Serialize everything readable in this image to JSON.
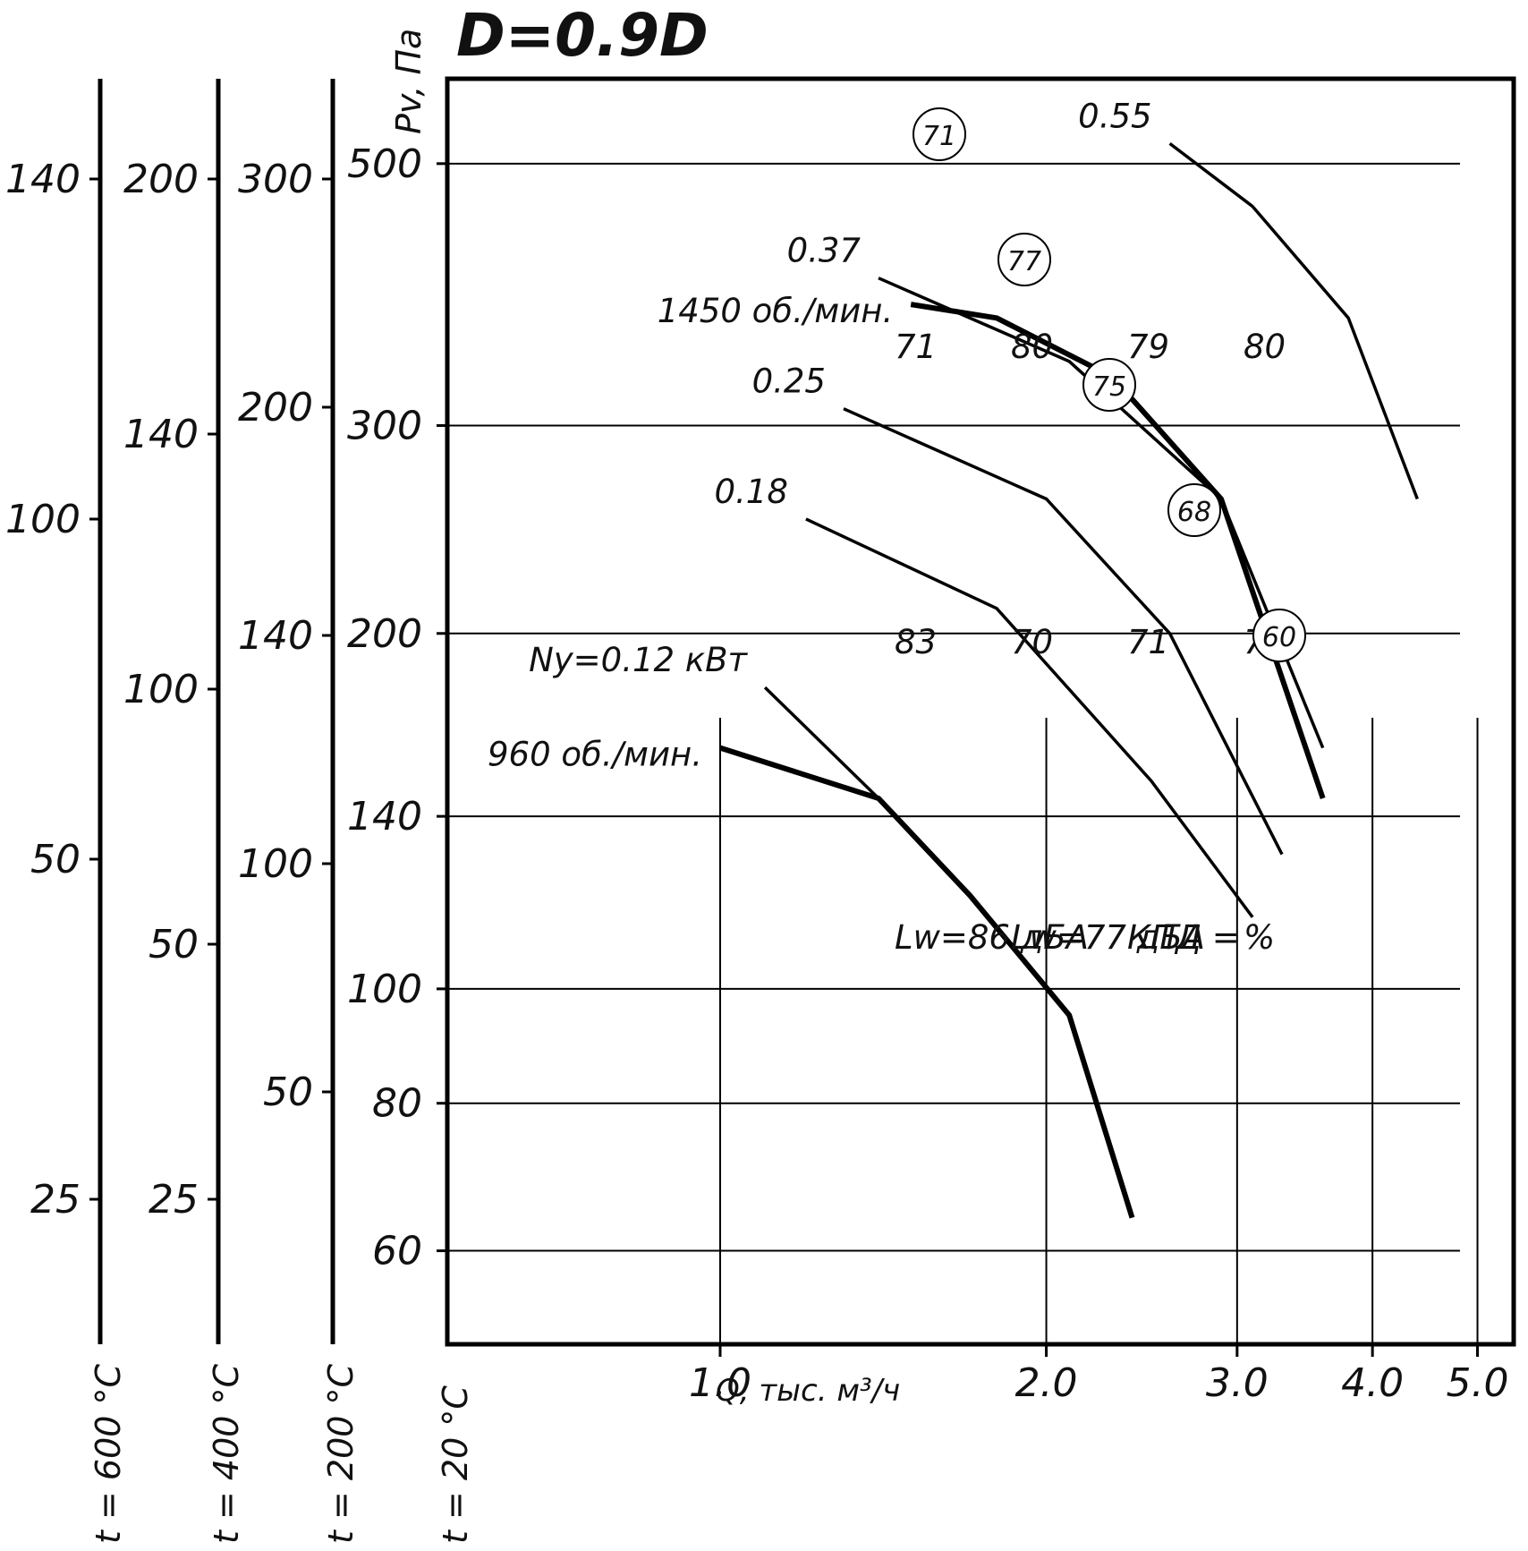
{
  "chart_data": {
    "type": "line",
    "title": "D=0.9D",
    "xlabel": "Q, тыс. м³/ч",
    "ylabel": "Pv, Па",
    "x_scale": "log",
    "y_scale": "log",
    "xlim": [
      0.56,
      5.4
    ],
    "ylim": [
      50,
      590
    ],
    "x_ticks": [
      "1.0",
      "2.0",
      "3.0",
      "4.0",
      "5.0"
    ],
    "y_ticks": [
      "500",
      "300",
      "200",
      "140",
      "100",
      "80",
      "60"
    ],
    "temperature_scales": [
      {
        "label": "t = 20 °C",
        "ticks": [
          "500",
          "300",
          "200",
          "140",
          "100",
          "80",
          "60"
        ]
      },
      {
        "label": "t = 200 °C",
        "ticks": [
          "300",
          "200",
          "140",
          "100",
          "50"
        ]
      },
      {
        "label": "t = 400 °C",
        "ticks": [
          "200",
          "140",
          "100",
          "50",
          "25"
        ]
      },
      {
        "label": "t = 600 °C",
        "ticks": [
          "140",
          "100",
          "50",
          "25"
        ]
      }
    ],
    "series": [
      {
        "name": "1450 об./мин.",
        "x": [
          1.5,
          1.8,
          2.3,
          2.9,
          3.6
        ],
        "y": [
          380,
          370,
          330,
          260,
          145
        ]
      },
      {
        "name": "960 об./мин.",
        "x": [
          1.0,
          1.4,
          1.7,
          2.1,
          2.4
        ],
        "y": [
          160,
          145,
          120,
          95,
          64
        ]
      }
    ],
    "power_lines": [
      {
        "label": "Ny=0.12 кВт",
        "x": [
          1.1,
          1.4
        ],
        "y": [
          180,
          145
        ]
      },
      {
        "label": "0.18",
        "x": [
          1.2,
          1.8,
          2.5,
          3.1
        ],
        "y": [
          250,
          210,
          150,
          115
        ]
      },
      {
        "label": "0.25",
        "x": [
          1.3,
          2.0,
          2.6,
          3.3
        ],
        "y": [
          310,
          260,
          200,
          130
        ]
      },
      {
        "label": "0.37",
        "x": [
          1.4,
          2.1,
          2.9,
          3.6
        ],
        "y": [
          400,
          340,
          260,
          160
        ]
      },
      {
        "label": "0.55",
        "x": [
          2.6,
          3.1,
          3.8,
          4.4
        ],
        "y": [
          520,
          460,
          370,
          260
        ]
      }
    ],
    "annotations": [
      "71",
      "80",
      "79",
      "80",
      "83",
      "70",
      "71",
      "74",
      "Lw=86 дБА",
      "Lw=77 дБА",
      "КПД =",
      "%"
    ],
    "efficiency_circles": [
      "71",
      "77",
      "75",
      "68",
      "60"
    ],
    "grid": true,
    "legend": "none"
  }
}
